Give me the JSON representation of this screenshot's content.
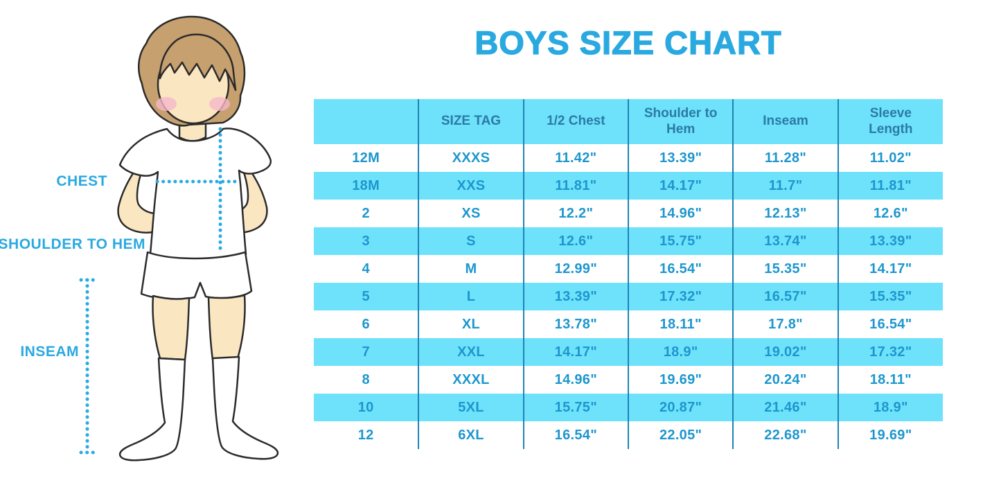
{
  "title": "BOYS SIZE CHART",
  "figure": {
    "chest_label": "CHEST",
    "shoulder_label": "SHOULDER TO HEM",
    "inseam_label": "INSEAM"
  },
  "colors": {
    "title": "#29A9E0",
    "stripe": "#6FE2FB",
    "divider": "#1E82B4",
    "header_text": "#2A7AA6",
    "cell_text": "#1D96CE",
    "label": "#29A9E0",
    "dotted": "#29ABE2",
    "skin": "#FAE6C1",
    "hair": "#C6A06F",
    "cheek": "#F5B8C9",
    "outline": "#2b2b2b"
  },
  "chart_data": {
    "type": "table",
    "title": "BOYS SIZE CHART",
    "columns": [
      "",
      "SIZE TAG",
      "1/2 Chest",
      "Shoulder to Hem",
      "Inseam",
      "Sleeve Length"
    ],
    "rows": [
      [
        "12M",
        "XXXS",
        "11.42\"",
        "13.39\"",
        "11.28\"",
        "11.02\""
      ],
      [
        "18M",
        "XXS",
        "11.81\"",
        "14.17\"",
        "11.7\"",
        "11.81\""
      ],
      [
        "2",
        "XS",
        "12.2\"",
        "14.96\"",
        "12.13\"",
        "12.6\""
      ],
      [
        "3",
        "S",
        "12.6\"",
        "15.75\"",
        "13.74\"",
        "13.39\""
      ],
      [
        "4",
        "M",
        "12.99\"",
        "16.54\"",
        "15.35\"",
        "14.17\""
      ],
      [
        "5",
        "L",
        "13.39\"",
        "17.32\"",
        "16.57\"",
        "15.35\""
      ],
      [
        "6",
        "XL",
        "13.78\"",
        "18.11\"",
        "17.8\"",
        "16.54\""
      ],
      [
        "7",
        "XXL",
        "14.17\"",
        "18.9\"",
        "19.02\"",
        "17.32\""
      ],
      [
        "8",
        "XXXL",
        "14.96\"",
        "19.69\"",
        "20.24\"",
        "18.11\""
      ],
      [
        "10",
        "5XL",
        "15.75\"",
        "20.87\"",
        "21.46\"",
        "18.9\""
      ],
      [
        "12",
        "6XL",
        "16.54\"",
        "22.05\"",
        "22.68\"",
        "19.69\""
      ]
    ]
  }
}
